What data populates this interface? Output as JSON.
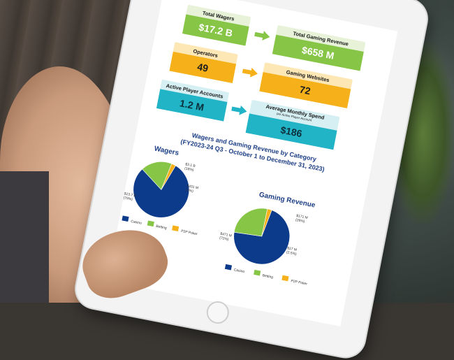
{
  "cards": {
    "total_wagers": {
      "label": "Total Wagers",
      "value": "$17.2 B"
    },
    "total_gaming_revenue": {
      "label": "Total Gaming Revenue",
      "value": "$658 M"
    },
    "operators": {
      "label": "Operators",
      "value": "49"
    },
    "gaming_websites": {
      "label": "Gaming Websites",
      "value": "72"
    },
    "active_player_accounts": {
      "label": "Active Player Accounts",
      "value": "1.2 M"
    },
    "average_monthly_spend": {
      "label": "Average Monthly Spend",
      "sublabel": "per Active Player Account",
      "value": "$186"
    }
  },
  "colors": {
    "green": "#86c545",
    "orange": "#f6b11a",
    "teal": "#21b3c6",
    "navy": "#0d3b8c"
  },
  "chart_section": {
    "title_line1": "Wagers and Gaming Revenue by Category",
    "title_line2": "(FY2023-24 Q3 - October 1 to December 31, 2023)"
  },
  "chart_data": [
    {
      "type": "pie",
      "title": "Wagers",
      "categories": [
        "Casino",
        "Betting",
        "P2P Poker"
      ],
      "values": [
        13.7,
        3.1,
        0.431
      ],
      "value_labels": [
        "$13.7 B",
        "$3.1 B",
        "$431 M"
      ],
      "percent_labels": [
        "(79%)",
        "(18%)",
        "(3%)"
      ],
      "legend": "bottom"
    },
    {
      "type": "pie",
      "title": "Gaming Revenue",
      "categories": [
        "Casino",
        "Betting",
        "P2P Poker"
      ],
      "values": [
        471,
        171,
        17
      ],
      "value_labels": [
        "$471 M",
        "$171 M",
        "$17 M"
      ],
      "percent_labels": [
        "(72%)",
        "(26%)",
        "(2.5%)"
      ],
      "legend": "bottom"
    }
  ]
}
